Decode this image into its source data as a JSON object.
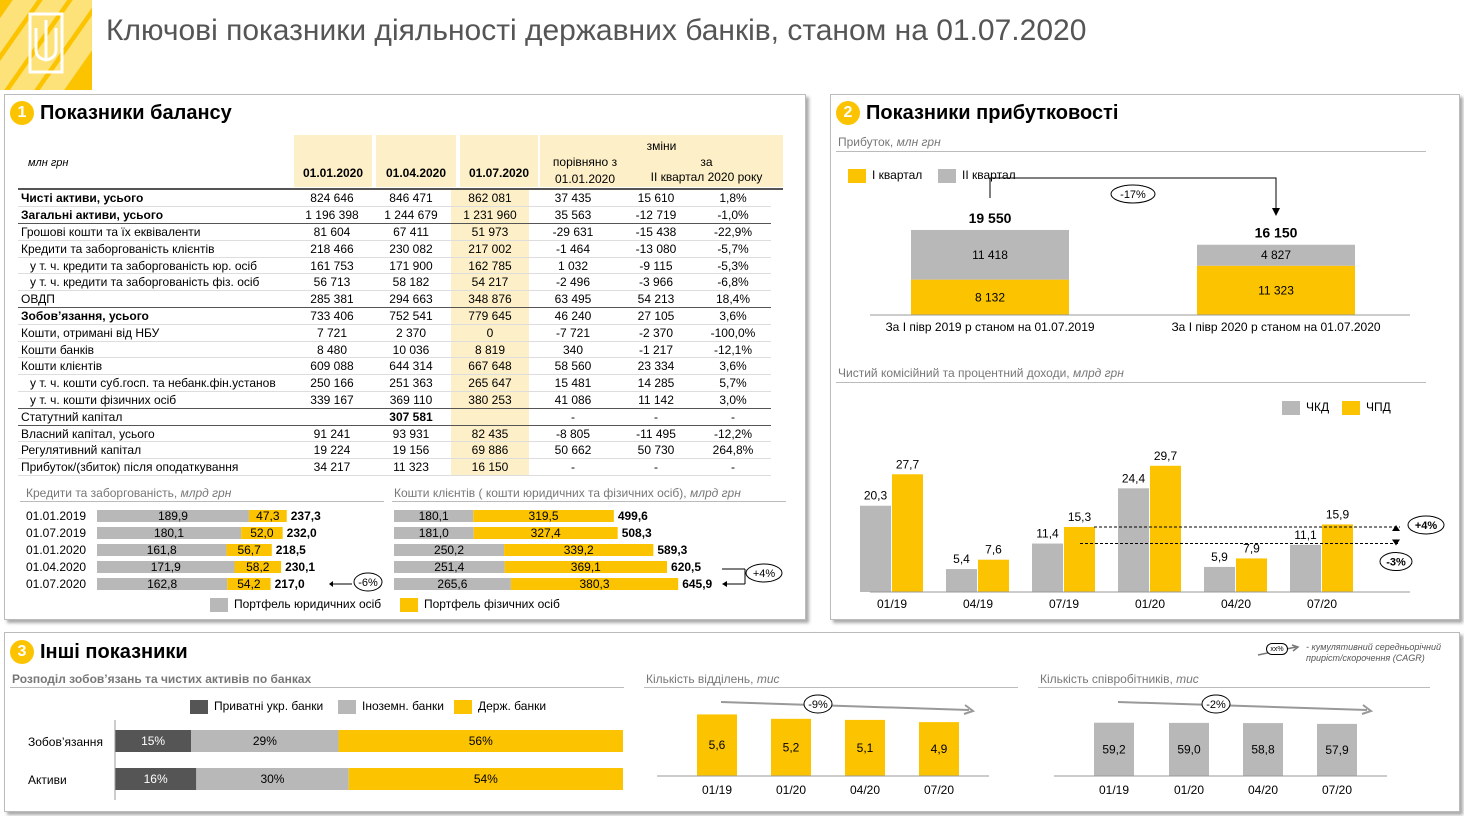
{
  "title": "Ключові показники діяльності державних банків, станом на 01.07.2020",
  "colors": {
    "yellow": "#fcc400",
    "gray": "#b8b8b8",
    "dark": "#555555",
    "light_yellow": "#fdf0c8"
  },
  "section1": {
    "num": "1",
    "title": "Показники балансу",
    "unit": "млн грн",
    "col_dates": [
      "01.01.2020",
      "01.04.2020",
      "01.07.2020"
    ],
    "changes": "зміни",
    "cmp_label": "порівняно з",
    "cmp_date": "01.01.2020",
    "quarter_label": "за",
    "quarter_sub": "II квартал 2020 року",
    "rows": [
      {
        "label": "Чисті активи, усього",
        "v": [
          "824 646",
          "846 471",
          "862 081",
          "37 435",
          "15 610",
          "1,8%"
        ],
        "bold": true
      },
      {
        "label": "Загальні активи, усього",
        "v": [
          "1 196 398",
          "1 244 679",
          "1 231 960",
          "35 563",
          "-12 719",
          "-1,0%"
        ],
        "bold": true
      },
      {
        "label": "Грошові кошти та їх еквіваленти",
        "v": [
          "81 604",
          "67 411",
          "51 973",
          "-29 631",
          "-15 438",
          "-22,9%"
        ]
      },
      {
        "label": "Кредити та заборгованість клієнтів",
        "v": [
          "218 466",
          "230 082",
          "217 002",
          "-1 464",
          "-13 080",
          "-5,7%"
        ]
      },
      {
        "label": "   у т. ч. кредити та заборгованість юр. осіб",
        "v": [
          "161 753",
          "171 900",
          "162 785",
          "1 032",
          "-9 115",
          "-5,3%"
        ]
      },
      {
        "label": "   у т. ч. кредити та заборгованість фіз. осіб",
        "v": [
          "56 713",
          "58 182",
          "54 217",
          "-2 496",
          "-3 966",
          "-6,8%"
        ]
      },
      {
        "label": "ОВДП",
        "v": [
          "285 381",
          "294 663",
          "348 876",
          "63 495",
          "54 213",
          "18,4%"
        ]
      },
      {
        "label": "Зобов’язання, усього",
        "v": [
          "733 406",
          "752 541",
          "779 645",
          "46 240",
          "27 105",
          "3,6%"
        ],
        "bold": true
      },
      {
        "label": "Кошти, отримані від НБУ",
        "v": [
          "7 721",
          "2 370",
          "0",
          "-7 721",
          "-2 370",
          "-100,0%"
        ]
      },
      {
        "label": "Кошти банків",
        "v": [
          "8 480",
          "10 036",
          "8 819",
          "340",
          "-1 217",
          "-12,1%"
        ]
      },
      {
        "label": "Кошти клієнтів",
        "v": [
          "609 088",
          "644 314",
          "667 648",
          "58 560",
          "23 334",
          "3,6%"
        ]
      },
      {
        "label": "   у т. ч. кошти суб.госп. та небанк.фін.установ",
        "v": [
          "250 166",
          "251 363",
          "265 647",
          "15 481",
          "14 285",
          "5,7%"
        ]
      },
      {
        "label": "   у т. ч. кошти фізичних осіб",
        "v": [
          "339 167",
          "369 110",
          "380 253",
          "41 086",
          "11 142",
          "3,0%"
        ]
      },
      {
        "label": "Статутний капітал",
        "v": [
          "",
          "307 581",
          "",
          "-",
          "-",
          "-"
        ]
      },
      {
        "label": "Власний капітал, усього",
        "v": [
          "91 241",
          "93 931",
          "82 435",
          "-8 805",
          "-11 495",
          "-12,2%"
        ]
      },
      {
        "label": "Регулятивний капітал",
        "v": [
          "19 224",
          "19 156",
          "69 886",
          "50 662",
          "50 730",
          "264,8%"
        ]
      },
      {
        "label": "Прибуток/(збиток) після оподаткування",
        "v": [
          "34 217",
          "11 323",
          "16 150",
          "-",
          "-",
          "-"
        ]
      }
    ],
    "loans_title": "Кредити та заборгованість,",
    "loans_unit": "млрд грн",
    "deposits_title": "Кошти клієнтів ( кошти юридичних та фізичних осіб),",
    "deposits_unit": "млрд грн",
    "legend_legal": "Портфель юридичних осіб",
    "legend_phys": "Портфель фізичних осіб",
    "loans_change": "-6%",
    "deposits_change": "+4%"
  },
  "section2": {
    "num": "2",
    "title": "Показники прибутковості",
    "profit_title": "Прибуток,",
    "profit_unit": "млн грн",
    "legend_q1": "I квартал",
    "legend_q2": "II квартал",
    "change": "-17%",
    "nii_title": "Чистий комісійний та процентний доходи,",
    "nii_unit": "млрд грн",
    "legend_ckd": "ЧКД",
    "legend_cpd": "ЧПД",
    "change_up": "+4%",
    "change_down": "-3%"
  },
  "section3": {
    "num": "3",
    "title": "Інші показники",
    "note": "- кумулятивний середньорічний приріст/скорочення (CAGR)",
    "note_badge": "xx%",
    "distr_title": "Розподіл зобов’язань та чистих активів по банках",
    "legend_private": "Приватні укр. банки",
    "legend_foreign": "Іноземн. банки",
    "legend_state": "Держ. банки",
    "branches_title": "Кількість відділень,",
    "branches_unit": "тис",
    "branches_change": "-9%",
    "staff_title": "Кількість співробітників,",
    "staff_unit": "тис",
    "staff_change": "-2%"
  },
  "chart_data": [
    {
      "id": "loans",
      "type": "bar",
      "orientation": "horizontal",
      "stacked": true,
      "categories": [
        "01.01.2019",
        "01.07.2019",
        "01.01.2020",
        "01.04.2020",
        "01.07.2020"
      ],
      "series": [
        {
          "name": "Портфель юридичних осіб",
          "values": [
            189.9,
            180.1,
            161.8,
            171.9,
            162.8
          ],
          "labels": [
            "189,9",
            "180,1",
            "161,8",
            "171,9",
            "162,8"
          ]
        },
        {
          "name": "Портфель фізичних осіб",
          "values": [
            47.3,
            52.0,
            56.7,
            58.2,
            54.2
          ],
          "labels": [
            "47,3",
            "52,0",
            "56,7",
            "58,2",
            "54,2"
          ]
        }
      ],
      "totals": [
        "237,3",
        "232,0",
        "218,5",
        "230,1",
        "217,0"
      ]
    },
    {
      "id": "deposits",
      "type": "bar",
      "orientation": "horizontal",
      "stacked": true,
      "categories": [
        "01.01.2019",
        "01.07.2019",
        "01.01.2020",
        "01.04.2020",
        "01.07.2020"
      ],
      "series": [
        {
          "name": "Портфель юридичних осіб",
          "values": [
            180.1,
            181.0,
            250.2,
            251.4,
            265.6
          ],
          "labels": [
            "180,1",
            "181,0",
            "250,2",
            "251,4",
            "265,6"
          ]
        },
        {
          "name": "Портфель фізичних осіб",
          "values": [
            319.5,
            327.4,
            339.2,
            369.1,
            380.3
          ],
          "labels": [
            "319,5",
            "327,4",
            "339,2",
            "369,1",
            "380,3"
          ]
        }
      ],
      "totals": [
        "499,6",
        "508,3",
        "589,3",
        "620,5",
        "645,9"
      ]
    },
    {
      "id": "profit",
      "type": "bar",
      "stacked": true,
      "categories": [
        "За I півр 2019 р станом на 01.07.2019",
        "За I півр 2020 р станом на 01.07.2020"
      ],
      "series": [
        {
          "name": "I квартал",
          "values": [
            8132,
            11323
          ],
          "labels": [
            "8 132",
            "11 323"
          ]
        },
        {
          "name": "II квартал",
          "values": [
            11418,
            4827
          ],
          "labels": [
            "11 418",
            "4 827"
          ]
        }
      ],
      "totals": [
        "19 550",
        "16 150"
      ]
    },
    {
      "id": "income",
      "type": "bar",
      "categories": [
        "01/19",
        "04/19",
        "07/19",
        "01/20",
        "04/20",
        "07/20"
      ],
      "series": [
        {
          "name": "ЧКД",
          "values": [
            20.3,
            5.4,
            11.4,
            24.4,
            5.9,
            11.1
          ],
          "labels": [
            "20,3",
            "5,4",
            "11,4",
            "24,4",
            "5,9",
            "11,1"
          ]
        },
        {
          "name": "ЧПД",
          "values": [
            27.7,
            7.6,
            15.3,
            29.7,
            7.9,
            15.9
          ],
          "labels": [
            "27,7",
            "7,6",
            "15,3",
            "29,7",
            "7,9",
            "15,9"
          ]
        }
      ]
    },
    {
      "id": "distribution",
      "type": "bar",
      "orientation": "horizontal",
      "stacked": true,
      "categories": [
        "Зобов’язання",
        "Активи"
      ],
      "series": [
        {
          "name": "Приватні укр. банки",
          "values": [
            15,
            16
          ],
          "labels": [
            "15%",
            "16%"
          ]
        },
        {
          "name": "Іноземн. банки",
          "values": [
            29,
            30
          ],
          "labels": [
            "29%",
            "30%"
          ]
        },
        {
          "name": "Держ. банки",
          "values": [
            56,
            54
          ],
          "labels": [
            "56%",
            "54%"
          ]
        }
      ]
    },
    {
      "id": "branches",
      "type": "bar",
      "categories": [
        "01/19",
        "01/20",
        "04/20",
        "07/20"
      ],
      "values": [
        5.6,
        5.2,
        5.1,
        4.9
      ],
      "labels": [
        "5,6",
        "5,2",
        "5,1",
        "4,9"
      ]
    },
    {
      "id": "staff",
      "type": "bar",
      "categories": [
        "01/19",
        "01/20",
        "04/20",
        "07/20"
      ],
      "values": [
        59.2,
        59.0,
        58.8,
        57.9
      ],
      "labels": [
        "59,2",
        "59,0",
        "58,8",
        "57,9"
      ]
    }
  ]
}
